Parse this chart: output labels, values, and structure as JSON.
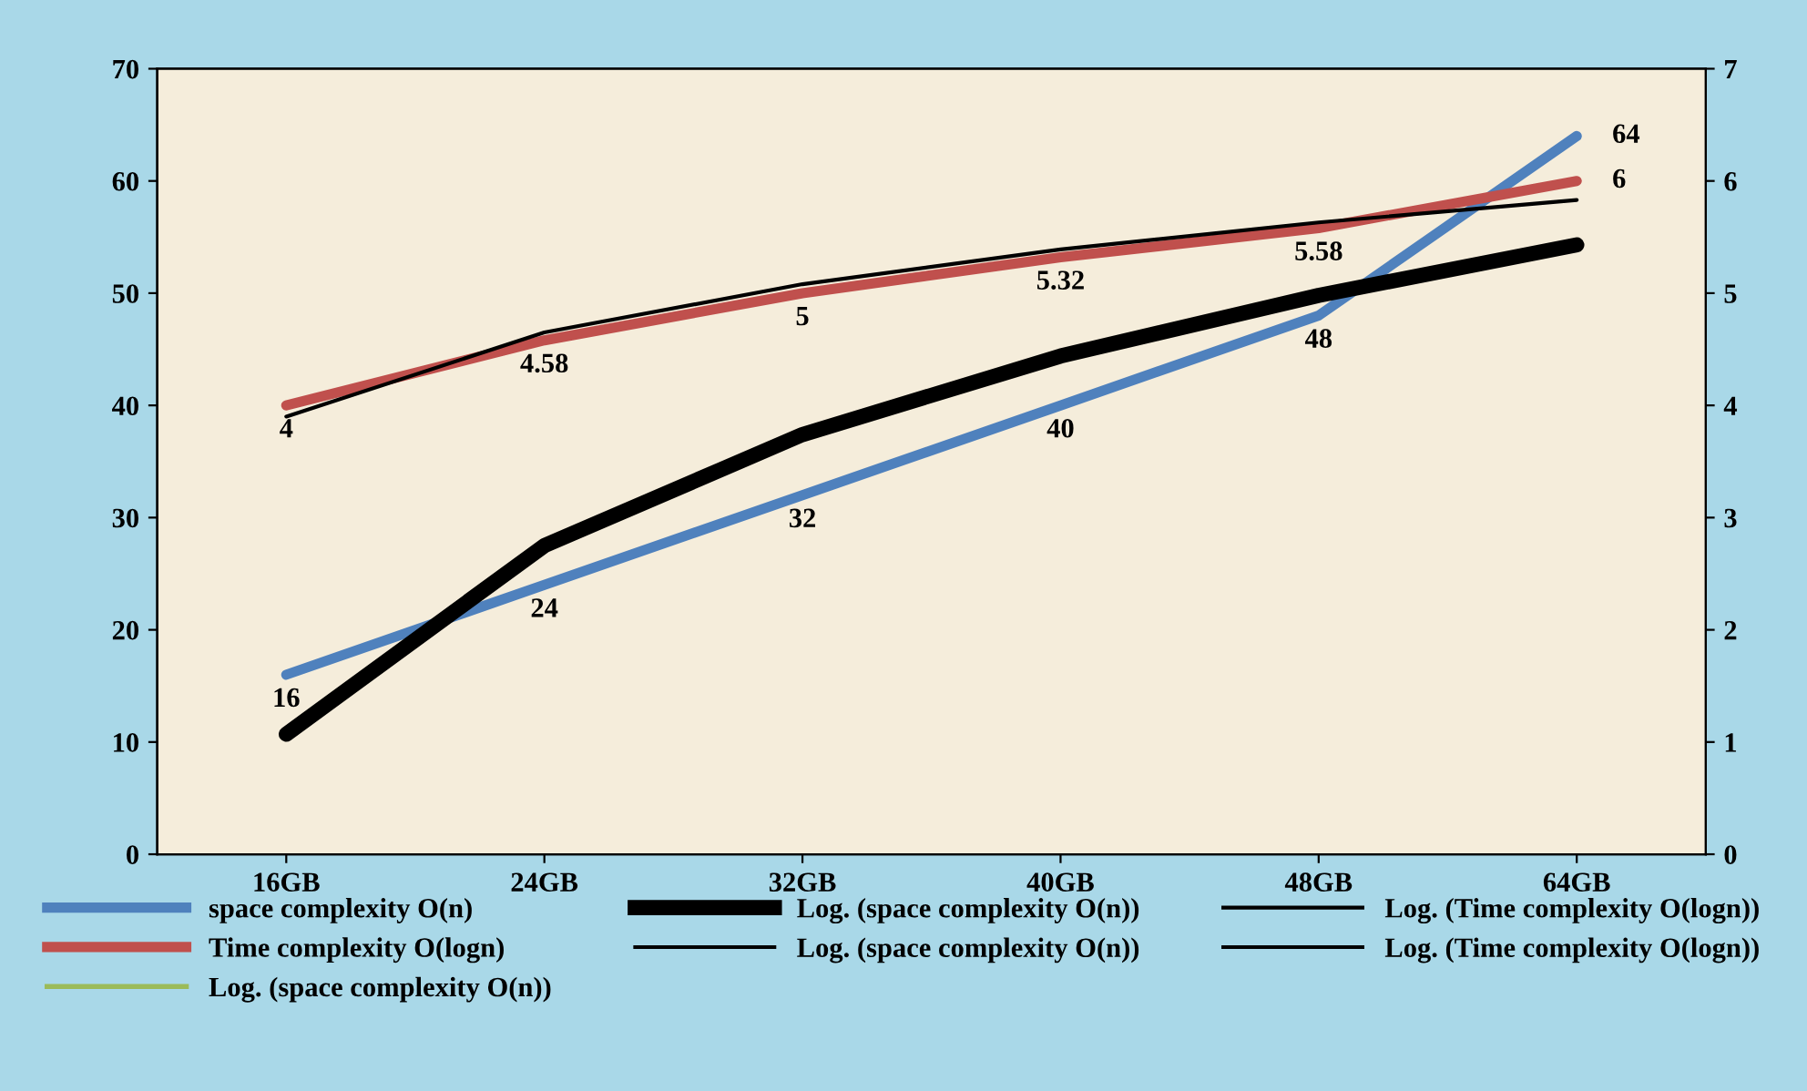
{
  "chart_data": {
    "type": "line",
    "categories": [
      "16GB",
      "24GB",
      "32GB",
      "40GB",
      "48GB",
      "64GB"
    ],
    "series": [
      {
        "name": "space complexity O(n)",
        "color": "#4f81bd",
        "values": [
          16,
          24,
          32,
          40,
          48,
          64
        ],
        "value_labels": [
          "16",
          "24",
          "32",
          "40",
          "48",
          "64"
        ]
      },
      {
        "name": "Time complexity O(logn)",
        "color": "#c0504d",
        "values": [
          4,
          4.58,
          5,
          5.32,
          5.58,
          6
        ],
        "axis": "y2",
        "value_labels": [
          "4",
          "4.58",
          "5",
          "5.32",
          "5.58",
          "6"
        ]
      },
      {
        "name": "Log. (space complexity O(n))",
        "color": "#9bbb59",
        "values": [
          null,
          null,
          null,
          null,
          null,
          null
        ]
      },
      {
        "name": "Log. (space complexity O(n))",
        "color": "#000000",
        "values": [
          10.7,
          27.5,
          37.4,
          44.4,
          49.8,
          54.3
        ]
      },
      {
        "name": "Log. (space complexity O(n))",
        "color": "#000000",
        "values": [
          null,
          null,
          null,
          null,
          null,
          null
        ]
      },
      {
        "name": "Log. (Time complexity O(logn))",
        "color": "#000000",
        "values": [
          null,
          null,
          null,
          null,
          null,
          null
        ]
      },
      {
        "name": "Log. (Time complexity O(logn))",
        "color": "#000000",
        "values": [
          3.9,
          4.65,
          5.08,
          5.39,
          5.63,
          5.83
        ],
        "axis": "y2"
      }
    ],
    "ylim": [
      0,
      70
    ],
    "yticks": [
      0,
      10,
      20,
      30,
      40,
      50,
      60,
      70
    ],
    "y2lim": [
      0,
      7
    ],
    "y2ticks": [
      0,
      1,
      2,
      3,
      4,
      5,
      6,
      7
    ],
    "legend": "bottom",
    "grid": false
  }
}
